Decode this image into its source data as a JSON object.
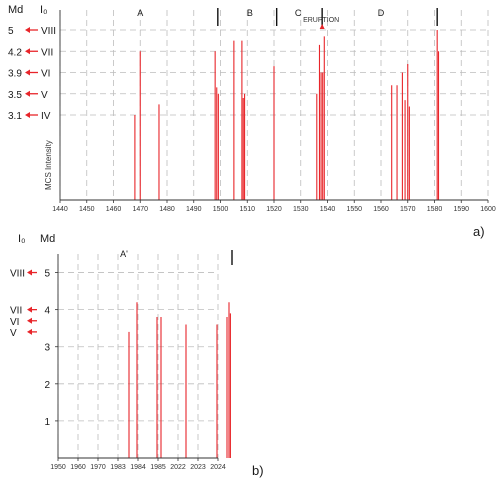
{
  "colors": {
    "bar": "#e8252a",
    "grid": "#bdbdbd",
    "axis": "#333333",
    "marker": "#111111"
  },
  "chart_data": [
    {
      "type": "bar",
      "panel_label": "a)",
      "header": {
        "md": "Md",
        "i0": "I₀"
      },
      "ylabel": "MCS Intensity",
      "xlim": [
        1440,
        1600
      ],
      "x_ticks": [
        "1440",
        "1450",
        "1460",
        "1470",
        "1480",
        "1490",
        "1500",
        "1510",
        "1520",
        "1530",
        "1540",
        "1550",
        "1560",
        "1570",
        "1580",
        "1590",
        "1600"
      ],
      "y_levels": [
        {
          "md": "5",
          "intensity": "VIII",
          "value": 8
        },
        {
          "md": "4.2",
          "intensity": "VII",
          "value": 7
        },
        {
          "md": "3.9",
          "intensity": "VI",
          "value": 6
        },
        {
          "md": "3.5",
          "intensity": "V",
          "value": 5
        },
        {
          "md": "3.1",
          "intensity": "IV",
          "value": 4
        }
      ],
      "periods": [
        {
          "label": "A",
          "center": 1470
        },
        {
          "label": "B",
          "center": 1511
        },
        {
          "label": "C",
          "center": 1529
        },
        {
          "label": "D",
          "center": 1560
        }
      ],
      "period_bounds": [
        1499,
        1521,
        1538,
        1581
      ],
      "eruption": {
        "label": "ERUPTION",
        "year": 1538
      },
      "events": [
        {
          "year": 1468,
          "value": 4.0
        },
        {
          "year": 1470,
          "value": 7.0
        },
        {
          "year": 1477,
          "value": 4.5
        },
        {
          "year": 1498,
          "value": 7.0
        },
        {
          "year": 1498.6,
          "value": 5.3
        },
        {
          "year": 1499.2,
          "value": 5.0
        },
        {
          "year": 1505,
          "value": 7.5
        },
        {
          "year": 1508,
          "value": 7.5
        },
        {
          "year": 1508.5,
          "value": 4.8
        },
        {
          "year": 1509,
          "value": 5.0
        },
        {
          "year": 1520,
          "value": 6.3
        },
        {
          "year": 1536,
          "value": 5.0
        },
        {
          "year": 1537,
          "value": 7.3
        },
        {
          "year": 1537.6,
          "value": 6.0
        },
        {
          "year": 1538.2,
          "value": 6.0
        },
        {
          "year": 1538.8,
          "value": 7.7
        },
        {
          "year": 1564,
          "value": 5.4
        },
        {
          "year": 1566,
          "value": 5.4
        },
        {
          "year": 1568,
          "value": 6.0
        },
        {
          "year": 1569,
          "value": 4.7
        },
        {
          "year": 1570,
          "value": 6.4
        },
        {
          "year": 1570.6,
          "value": 4.4
        },
        {
          "year": 1581,
          "value": 8.0
        },
        {
          "year": 1581.5,
          "value": 7.0
        }
      ]
    },
    {
      "type": "bar",
      "panel_label": "b)",
      "header": {
        "md": "Md",
        "i0": "I₀"
      },
      "ylim": [
        0,
        5.5
      ],
      "y_ticks": [
        "1",
        "2",
        "3",
        "4",
        "5"
      ],
      "y_intensity": [
        {
          "label": "VIII",
          "value": 5
        },
        {
          "label": "VII",
          "value": 4
        },
        {
          "label": "VI",
          "value": 3.7
        },
        {
          "label": "V",
          "value": 3.4
        }
      ],
      "x_ticks": [
        "1950",
        "1960",
        "1970",
        "1983",
        "1984",
        "1985",
        "2022",
        "2023",
        "2024"
      ],
      "periods": [
        {
          "label": "A'",
          "center": 3.3
        }
      ],
      "period_bounds": [
        8.7
      ],
      "events": [
        {
          "pos": 3.55,
          "value": 3.4
        },
        {
          "pos": 3.95,
          "value": 4.2
        },
        {
          "pos": 4.95,
          "value": 3.8
        },
        {
          "pos": 5.15,
          "value": 3.8
        },
        {
          "pos": 6.4,
          "value": 3.6
        },
        {
          "pos": 7.95,
          "value": 3.6
        },
        {
          "pos": 8.45,
          "value": 3.8
        },
        {
          "pos": 8.55,
          "value": 4.2
        },
        {
          "pos": 8.62,
          "value": 3.9
        }
      ]
    }
  ]
}
